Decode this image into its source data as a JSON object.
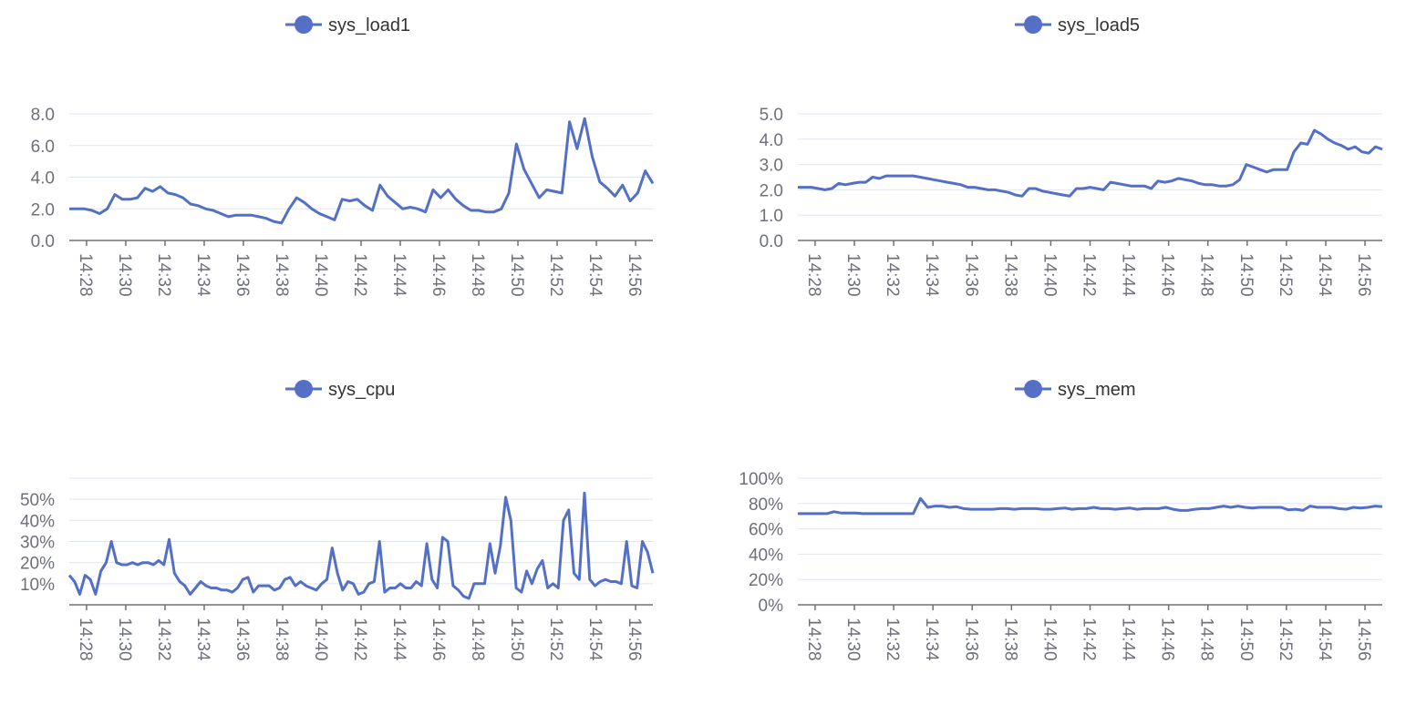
{
  "colors": {
    "series": "#5470c6",
    "grid": "#e0e6f1",
    "axis": "#6e7079"
  },
  "x_tick_labels": [
    "14:28",
    "14:30",
    "14:32",
    "14:34",
    "14:36",
    "14:38",
    "14:40",
    "14:42",
    "14:44",
    "14:46",
    "14:48",
    "14:50",
    "14:52",
    "14:54",
    "14:56"
  ],
  "chart_data": [
    {
      "type": "line",
      "title": "",
      "legend": "sys_load1",
      "legend_position": "top-center",
      "xlabel": "",
      "ylabel": "",
      "x_range": [
        "14:27",
        "14:57"
      ],
      "ylim": [
        0,
        8
      ],
      "y_ticks": [
        0,
        2,
        4,
        6,
        8
      ],
      "y_tick_labels": [
        "0.0",
        "2.0",
        "4.0",
        "6.0",
        "8.0"
      ],
      "grid": true,
      "values": [
        2.0,
        2.0,
        2.0,
        1.9,
        1.7,
        2.0,
        2.9,
        2.6,
        2.6,
        2.7,
        3.3,
        3.1,
        3.4,
        3.0,
        2.9,
        2.7,
        2.3,
        2.2,
        2.0,
        1.9,
        1.7,
        1.5,
        1.6,
        1.6,
        1.6,
        1.5,
        1.4,
        1.2,
        1.1,
        2.0,
        2.7,
        2.4,
        2.0,
        1.7,
        1.5,
        1.3,
        2.6,
        2.5,
        2.6,
        2.2,
        1.9,
        3.5,
        2.8,
        2.4,
        2.0,
        2.1,
        2.0,
        1.8,
        3.2,
        2.7,
        3.2,
        2.6,
        2.2,
        1.9,
        1.9,
        1.8,
        1.8,
        2.0,
        3.0,
        6.1,
        4.5,
        3.6,
        2.7,
        3.2,
        3.1,
        3.0,
        7.5,
        5.8,
        7.7,
        5.3,
        3.7,
        3.3,
        2.8,
        3.5,
        2.5,
        3.0,
        4.4,
        3.6
      ]
    },
    {
      "type": "line",
      "title": "",
      "legend": "sys_load5",
      "legend_position": "top-center",
      "xlabel": "",
      "ylabel": "",
      "x_range": [
        "14:27",
        "14:57"
      ],
      "ylim": [
        0,
        5
      ],
      "y_ticks": [
        0,
        1,
        2,
        3,
        4,
        5
      ],
      "y_tick_labels": [
        "0.0",
        "1.0",
        "2.0",
        "3.0",
        "4.0",
        "5.0"
      ],
      "grid": true,
      "values": [
        2.1,
        2.1,
        2.1,
        2.05,
        2.0,
        2.05,
        2.25,
        2.2,
        2.25,
        2.3,
        2.3,
        2.5,
        2.45,
        2.55,
        2.55,
        2.55,
        2.55,
        2.55,
        2.5,
        2.45,
        2.4,
        2.35,
        2.3,
        2.25,
        2.2,
        2.1,
        2.1,
        2.05,
        2.0,
        2.0,
        1.95,
        1.9,
        1.8,
        1.75,
        2.05,
        2.05,
        1.95,
        1.9,
        1.85,
        1.8,
        1.75,
        2.05,
        2.05,
        2.1,
        2.05,
        2.0,
        2.3,
        2.25,
        2.2,
        2.15,
        2.15,
        2.15,
        2.05,
        2.35,
        2.3,
        2.35,
        2.45,
        2.4,
        2.35,
        2.25,
        2.2,
        2.2,
        2.15,
        2.15,
        2.2,
        2.4,
        3.0,
        2.9,
        2.8,
        2.7,
        2.8,
        2.8,
        2.8,
        3.5,
        3.85,
        3.8,
        4.35,
        4.2,
        4.0,
        3.85,
        3.75,
        3.6,
        3.7,
        3.5,
        3.45,
        3.7,
        3.6
      ]
    },
    {
      "type": "line",
      "title": "",
      "legend": "sys_cpu",
      "legend_position": "top-center",
      "xlabel": "",
      "ylabel": "",
      "x_range": [
        "14:27",
        "14:57"
      ],
      "ylim": [
        0,
        60
      ],
      "y_ticks": [
        10,
        20,
        30,
        40,
        50
      ],
      "y_tick_labels": [
        "10%",
        "20%",
        "30%",
        "40%",
        "50%"
      ],
      "grid": true,
      "values": [
        14,
        11,
        5,
        14,
        12,
        5,
        16,
        20,
        30,
        20,
        19,
        19,
        20,
        19,
        20,
        20,
        19,
        21,
        19,
        31,
        15,
        11,
        9,
        5,
        8,
        11,
        9,
        8,
        8,
        7,
        7,
        6,
        8,
        12,
        13,
        6,
        9,
        9,
        9,
        7,
        8,
        12,
        13,
        9,
        11,
        9,
        8,
        7,
        10,
        12,
        27,
        15,
        7,
        11,
        10,
        5,
        6,
        10,
        11,
        30,
        6,
        8,
        8,
        10,
        8,
        8,
        11,
        9,
        29,
        12,
        8,
        32,
        30,
        9,
        7,
        4,
        3,
        10,
        10,
        10,
        29,
        15,
        28,
        51,
        40,
        8,
        6,
        16,
        10,
        17,
        21,
        8,
        10,
        8,
        40,
        45,
        15,
        12,
        53,
        12,
        9,
        11,
        12,
        11,
        11,
        10,
        30,
        9,
        8,
        30,
        25,
        15
      ]
    },
    {
      "type": "line",
      "title": "",
      "legend": "sys_mem",
      "legend_position": "top-center",
      "xlabel": "",
      "ylabel": "",
      "x_range": [
        "14:27",
        "14:57"
      ],
      "ylim": [
        0,
        100
      ],
      "y_ticks": [
        0,
        20,
        40,
        60,
        80,
        100
      ],
      "y_tick_labels": [
        "0%",
        "20%",
        "40%",
        "60%",
        "80%",
        "100%"
      ],
      "grid": true,
      "values": [
        72,
        72,
        72,
        72,
        72,
        73.5,
        72.5,
        72.5,
        72.5,
        72,
        72,
        72,
        72,
        72,
        72,
        72,
        72,
        84,
        77,
        78,
        78,
        77,
        77.5,
        76,
        75.5,
        75.5,
        75.5,
        75.5,
        76,
        76,
        75.5,
        76,
        76,
        76,
        75.5,
        75.5,
        76,
        76.5,
        75.5,
        76,
        76,
        77,
        76,
        76,
        75.5,
        76,
        76.5,
        75.5,
        76,
        76,
        76,
        77,
        75.5,
        74.5,
        74.5,
        75.5,
        76,
        76,
        77,
        78,
        77,
        78,
        77,
        76.5,
        77,
        77,
        77,
        77,
        75,
        75.5,
        74.5,
        78,
        77,
        77,
        77,
        76,
        75.5,
        77,
        76.5,
        77,
        78,
        77.5
      ]
    }
  ]
}
